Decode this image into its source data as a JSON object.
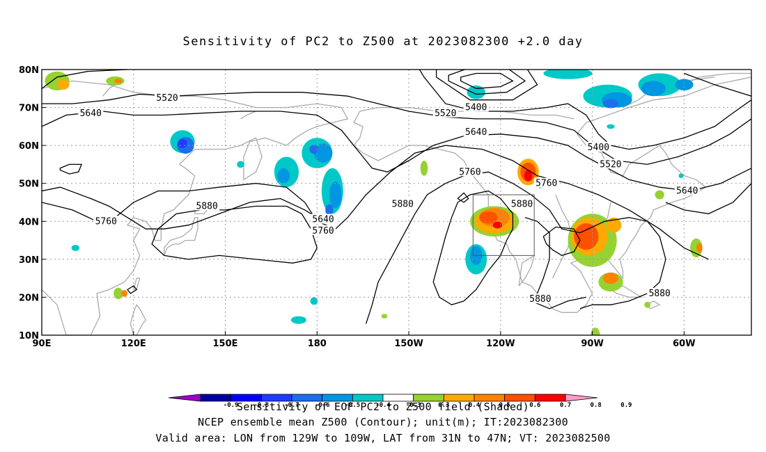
{
  "title": "Sensitivity of PC2 to Z500 at 2023082300 +2.0 day",
  "lat_ticks": [
    {
      "label": "80N",
      "lat": 80
    },
    {
      "label": "70N",
      "lat": 70
    },
    {
      "label": "60N",
      "lat": 60
    },
    {
      "label": "50N",
      "lat": 50
    },
    {
      "label": "40N",
      "lat": 40
    },
    {
      "label": "30N",
      "lat": 30
    },
    {
      "label": "20N",
      "lat": 20
    },
    {
      "label": "10N",
      "lat": 10
    }
  ],
  "lon_ticks": [
    {
      "label": "90E",
      "lon": 90
    },
    {
      "label": "120E",
      "lon": 120
    },
    {
      "label": "150E",
      "lon": 150
    },
    {
      "label": "180",
      "lon": 180
    },
    {
      "label": "150W",
      "lon": 210
    },
    {
      "label": "120W",
      "lon": 240
    },
    {
      "label": "90W",
      "lon": 270
    },
    {
      "label": "60W",
      "lon": 300
    }
  ],
  "contour_labels": [
    {
      "text": "5520",
      "lon": 131,
      "lat": 72.5
    },
    {
      "text": "5640",
      "lon": 106,
      "lat": 68.5
    },
    {
      "text": "5520",
      "lon": 222,
      "lat": 68.5
    },
    {
      "text": "5400",
      "lon": 232,
      "lat": 70
    },
    {
      "text": "5640",
      "lon": 232,
      "lat": 63.5
    },
    {
      "text": "5400",
      "lon": 272,
      "lat": 59.5
    },
    {
      "text": "5520",
      "lon": 276,
      "lat": 55
    },
    {
      "text": "5760",
      "lon": 230,
      "lat": 53
    },
    {
      "text": "5760",
      "lon": 255,
      "lat": 50
    },
    {
      "text": "5640",
      "lon": 301,
      "lat": 48
    },
    {
      "text": "5880",
      "lon": 144,
      "lat": 44
    },
    {
      "text": "5640",
      "lon": 182,
      "lat": 40.5
    },
    {
      "text": "5760",
      "lon": 182,
      "lat": 37.5
    },
    {
      "text": "5760",
      "lon": 111,
      "lat": 40
    },
    {
      "text": "5880",
      "lon": 208,
      "lat": 44.5
    },
    {
      "text": "5880",
      "lon": 247,
      "lat": 44.5
    },
    {
      "text": "5880",
      "lon": 292,
      "lat": 21
    },
    {
      "text": "5880",
      "lon": 253,
      "lat": 19.5
    }
  ],
  "valid_box": {
    "lon_min": 231,
    "lon_max": 251,
    "lat_min": 31,
    "lat_max": 47
  },
  "colorbar": {
    "labels": [
      "-0.9",
      "-0.8",
      "-0.7",
      "-0.6",
      "-0.5",
      "-0.4",
      "-0.3",
      "0.3",
      "0.4",
      "0.5",
      "0.6",
      "0.7",
      "0.8",
      "0.9"
    ],
    "colors": [
      "#a000c8",
      "#0000a0",
      "#0000ff",
      "#1e3cff",
      "#1e6eeb",
      "#0096e1",
      "#00c8c8",
      "#ffffff",
      "#96d232",
      "#ffaa00",
      "#ff8200",
      "#ff5000",
      "#fa0000",
      "#ff9ec8"
    ]
  },
  "footer": {
    "line1": "Sensitivity of EOF PC2 to Z500 field (Shaded)",
    "line2": "NCEP ensemble mean Z500 (Contour); unit(m); IT:2023082300",
    "line3": "Valid area: LON from 129W to 109W, LAT from 31N to 47N; VT: 2023082500"
  }
}
